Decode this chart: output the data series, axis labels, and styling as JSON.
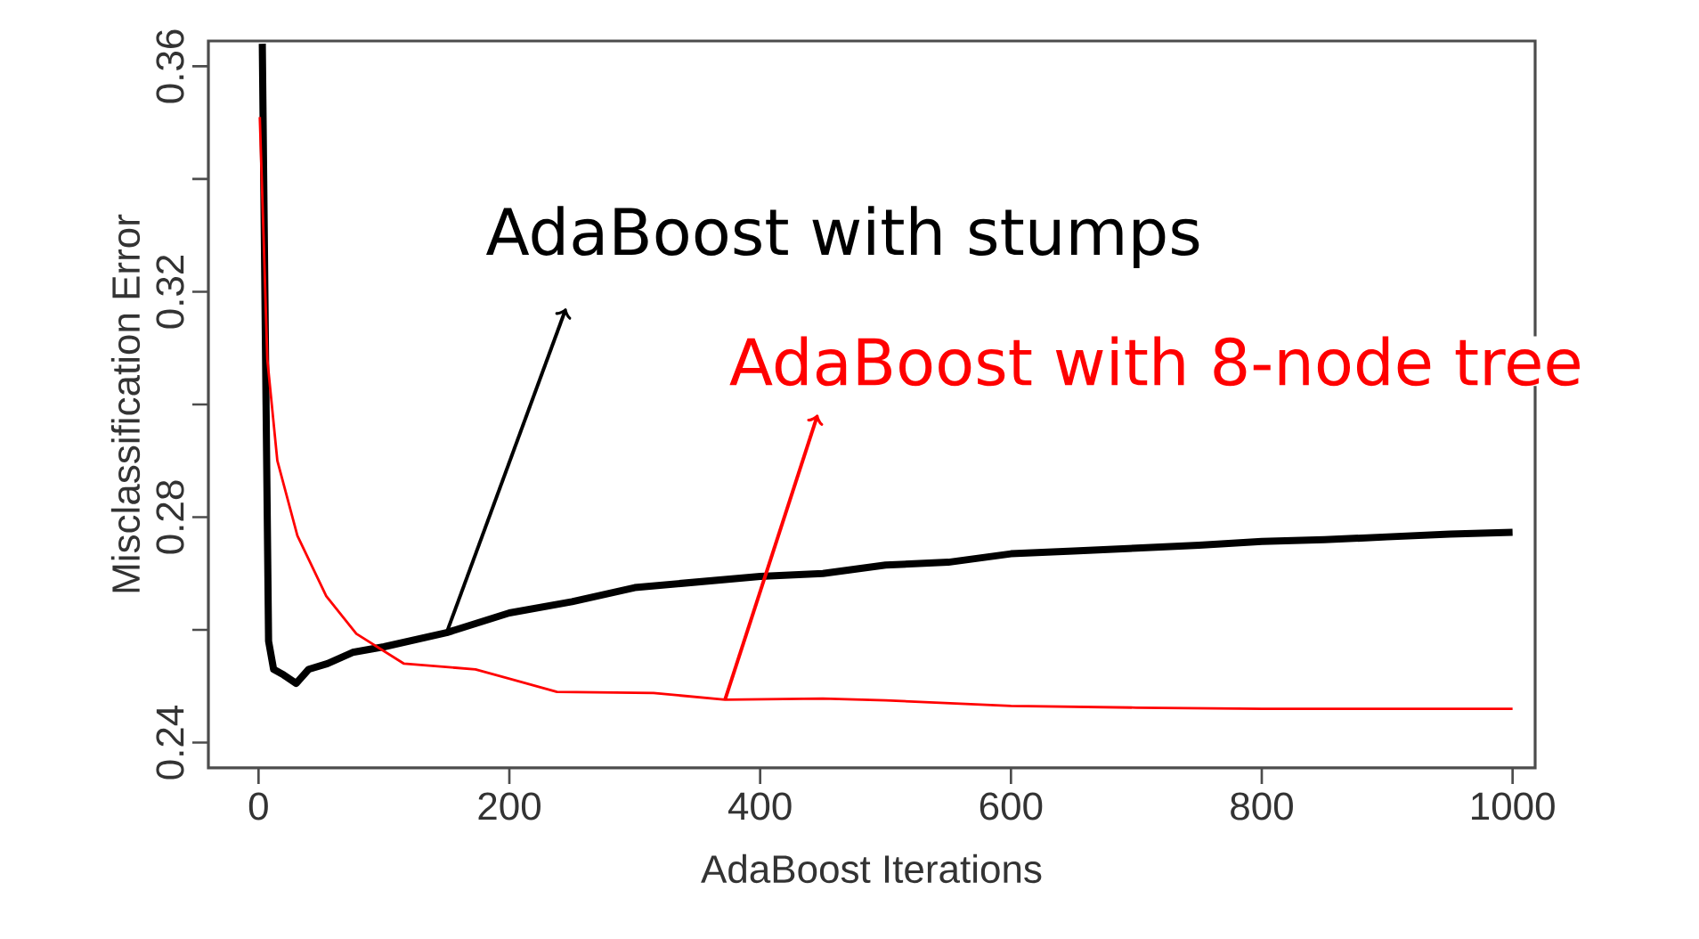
{
  "chart_data": {
    "type": "line",
    "xlabel": "AdaBoost Iterations",
    "ylabel": "Misclassification Error",
    "xlim": [
      -40,
      1018
    ],
    "ylim": [
      0.2355,
      0.3645
    ],
    "xticks": [
      0,
      200,
      400,
      600,
      800,
      1000
    ],
    "yticks": [
      0.24,
      {
        "value": 0.26,
        "label": null
      },
      0.28,
      {
        "value": 0.3,
        "label": null
      },
      0.32,
      {
        "value": 0.34,
        "label": null
      },
      0.36
    ],
    "grid": false,
    "marker": "none",
    "line_style": "solid",
    "series": [
      {
        "color": "#000000",
        "x": [
          3,
          6,
          8,
          12,
          20,
          30,
          40,
          55,
          75,
          100,
          150,
          200,
          250,
          300,
          350,
          400,
          450,
          500,
          550,
          600,
          650,
          700,
          750,
          800,
          850,
          900,
          950,
          1000
        ],
        "values": [
          0.364,
          0.3,
          0.258,
          0.253,
          0.252,
          0.2505,
          0.253,
          0.254,
          0.256,
          0.257,
          0.2595,
          0.263,
          0.265,
          0.2675,
          0.2685,
          0.2695,
          0.27,
          0.2715,
          0.272,
          0.2735,
          0.274,
          0.2745,
          0.275,
          0.2757,
          0.276,
          0.2765,
          0.277,
          0.2773
        ]
      },
      {
        "color": "#ff0000",
        "x": [
          1,
          4,
          7,
          15,
          31,
          54,
          78,
          116,
          173,
          238,
          315,
          372,
          450,
          500,
          600,
          700,
          800,
          900,
          1000
        ],
        "values": [
          0.351,
          0.33,
          0.308,
          0.29,
          0.2767,
          0.266,
          0.2593,
          0.254,
          0.253,
          0.249,
          0.2488,
          0.2476,
          0.2478,
          0.2475,
          0.2465,
          0.2462,
          0.246,
          0.246,
          0.246
        ]
      }
    ],
    "annotations": [
      {
        "text": "AdaBoost with stumps",
        "x": 150,
        "y": 0.2595
      },
      {
        "text": "AdaBoost with 8-node tree",
        "x": 372,
        "y": 0.2476
      }
    ]
  }
}
